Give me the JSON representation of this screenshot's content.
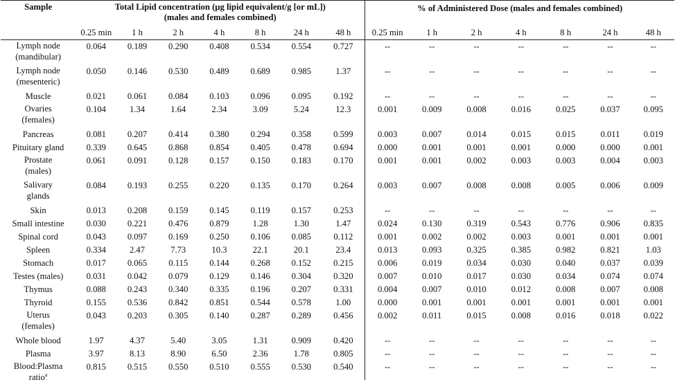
{
  "header": {
    "sample_label": "Sample",
    "tl_title_line1": "Total Lipid concentration (µg lipid equivalent/g [or mL])",
    "tl_title_line2": "(males and females combined)",
    "pct_title": "% of Administered Dose (males and females combined)",
    "timepoints": [
      "0.25 min",
      "1 h",
      "2 h",
      "4 h",
      "8 h",
      "24 h",
      "48 h"
    ]
  },
  "rows": [
    {
      "sample": [
        "Lymph node",
        "(mandibular)"
      ],
      "conc": [
        "0.064",
        "0.189",
        "0.290",
        "0.408",
        "0.534",
        "0.554",
        "0.727"
      ],
      "dose": [
        "--",
        "--",
        "--",
        "--",
        "--",
        "--",
        "--"
      ]
    },
    {
      "sample": [
        "Lymph node",
        "(mesenteric)"
      ],
      "conc": [
        "0.050",
        "0.146",
        "0.530",
        "0.489",
        "0.689",
        "0.985",
        "1.37"
      ],
      "dose": [
        "--",
        "--",
        "--",
        "--",
        "--",
        "--",
        "--"
      ]
    },
    {
      "sample": [
        "Muscle"
      ],
      "conc": [
        "0.021",
        "0.061",
        "0.084",
        "0.103",
        "0.096",
        "0.095",
        "0.192"
      ],
      "dose": [
        "--",
        "--",
        "--",
        "--",
        "--",
        "--",
        "--"
      ]
    },
    {
      "sample": [
        "Ovaries",
        "(females)"
      ],
      "conc": [
        "0.104",
        "1.34",
        "1.64",
        "2.34",
        "3.09",
        "5.24",
        "12.3"
      ],
      "dose": [
        "0.001",
        "0.009",
        "0.008",
        "0.016",
        "0.025",
        "0.037",
        "0.095"
      ]
    },
    {
      "sample": [
        "Pancreas"
      ],
      "conc": [
        "0.081",
        "0.207",
        "0.414",
        "0.380",
        "0.294",
        "0.358",
        "0.599"
      ],
      "dose": [
        "0.003",
        "0.007",
        "0.014",
        "0.015",
        "0.015",
        "0.011",
        "0.019"
      ]
    },
    {
      "sample": [
        "Pituitary gland"
      ],
      "conc": [
        "0.339",
        "0.645",
        "0.868",
        "0.854",
        "0.405",
        "0.478",
        "0.694"
      ],
      "dose": [
        "0.000",
        "0.001",
        "0.001",
        "0.001",
        "0.000",
        "0.000",
        "0.001"
      ]
    },
    {
      "sample": [
        "Prostate",
        "(males)"
      ],
      "conc": [
        "0.061",
        "0.091",
        "0.128",
        "0.157",
        "0.150",
        "0.183",
        "0.170"
      ],
      "dose": [
        "0.001",
        "0.001",
        "0.002",
        "0.003",
        "0.003",
        "0.004",
        "0.003"
      ]
    },
    {
      "sample": [
        "Salivary",
        "glands"
      ],
      "conc": [
        "0.084",
        "0.193",
        "0.255",
        "0.220",
        "0.135",
        "0.170",
        "0.264"
      ],
      "dose": [
        "0.003",
        "0.007",
        "0.008",
        "0.008",
        "0.005",
        "0.006",
        "0.009"
      ]
    },
    {
      "sample": [
        "Skin"
      ],
      "conc": [
        "0.013",
        "0.208",
        "0.159",
        "0.145",
        "0.119",
        "0.157",
        "0.253"
      ],
      "dose": [
        "--",
        "--",
        "--",
        "--",
        "--",
        "--",
        "--"
      ]
    },
    {
      "sample": [
        "Small intestine"
      ],
      "conc": [
        "0.030",
        "0.221",
        "0.476",
        "0.879",
        "1.28",
        "1.30",
        "1.47"
      ],
      "dose": [
        "0.024",
        "0.130",
        "0.319",
        "0.543",
        "0.776",
        "0.906",
        "0.835"
      ]
    },
    {
      "sample": [
        "Spinal cord"
      ],
      "conc": [
        "0.043",
        "0.097",
        "0.169",
        "0.250",
        "0.106",
        "0.085",
        "0.112"
      ],
      "dose": [
        "0.001",
        "0.002",
        "0.002",
        "0.003",
        "0.001",
        "0.001",
        "0.001"
      ]
    },
    {
      "sample": [
        "Spleen"
      ],
      "conc": [
        "0.334",
        "2.47",
        "7.73",
        "10.3",
        "22.1",
        "20.1",
        "23.4"
      ],
      "dose": [
        "0.013",
        "0.093",
        "0.325",
        "0.385",
        "0.982",
        "0.821",
        "1.03"
      ]
    },
    {
      "sample": [
        "Stomach"
      ],
      "conc": [
        "0.017",
        "0.065",
        "0.115",
        "0.144",
        "0.268",
        "0.152",
        "0.215"
      ],
      "dose": [
        "0.006",
        "0.019",
        "0.034",
        "0.030",
        "0.040",
        "0.037",
        "0.039"
      ]
    },
    {
      "sample": [
        "Testes (males)"
      ],
      "conc": [
        "0.031",
        "0.042",
        "0.079",
        "0.129",
        "0.146",
        "0.304",
        "0.320"
      ],
      "dose": [
        "0.007",
        "0.010",
        "0.017",
        "0.030",
        "0.034",
        "0.074",
        "0.074"
      ]
    },
    {
      "sample": [
        "Thymus"
      ],
      "conc": [
        "0.088",
        "0.243",
        "0.340",
        "0.335",
        "0.196",
        "0.207",
        "0.331"
      ],
      "dose": [
        "0.004",
        "0.007",
        "0.010",
        "0.012",
        "0.008",
        "0.007",
        "0.008"
      ]
    },
    {
      "sample": [
        "Thyroid"
      ],
      "conc": [
        "0.155",
        "0.536",
        "0.842",
        "0.851",
        "0.544",
        "0.578",
        "1.00"
      ],
      "dose": [
        "0.000",
        "0.001",
        "0.001",
        "0.001",
        "0.001",
        "0.001",
        "0.001"
      ]
    },
    {
      "sample": [
        "Uterus",
        "(females)"
      ],
      "conc": [
        "0.043",
        "0.203",
        "0.305",
        "0.140",
        "0.287",
        "0.289",
        "0.456"
      ],
      "dose": [
        "0.002",
        "0.011",
        "0.015",
        "0.008",
        "0.016",
        "0.018",
        "0.022"
      ]
    },
    {
      "sample": [
        "Whole blood"
      ],
      "conc": [
        "1.97",
        "4.37",
        "5.40",
        "3.05",
        "1.31",
        "0.909",
        "0.420"
      ],
      "dose": [
        "--",
        "--",
        "--",
        "--",
        "--",
        "--",
        "--"
      ]
    },
    {
      "sample": [
        "Plasma"
      ],
      "conc": [
        "3.97",
        "8.13",
        "8.90",
        "6.50",
        "2.36",
        "1.78",
        "0.805"
      ],
      "dose": [
        "--",
        "--",
        "--",
        "--",
        "--",
        "--",
        "--"
      ]
    },
    {
      "sample": [
        "Blood:Plasma",
        "ratio"
      ],
      "sample_sup": "a",
      "conc": [
        "0.815",
        "0.515",
        "0.550",
        "0.510",
        "0.555",
        "0.530",
        "0.540"
      ],
      "dose": [
        "--",
        "--",
        "--",
        "--",
        "--",
        "--",
        "--"
      ]
    }
  ]
}
